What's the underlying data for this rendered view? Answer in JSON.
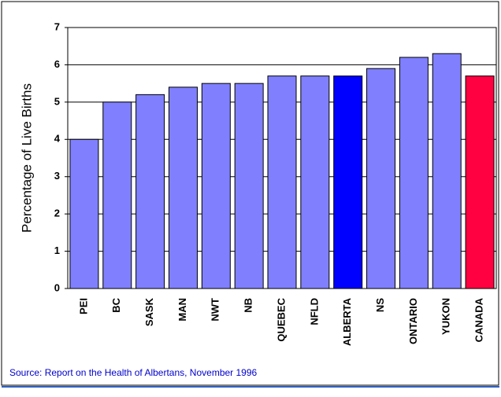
{
  "chart_data": {
    "type": "bar",
    "ylabel": "Percentage of Live Births",
    "categories": [
      "PEI",
      "BC",
      "SASK",
      "MAN",
      "NWT",
      "NB",
      "QUEBEC",
      "NFLD",
      "ALBERTA",
      "NS",
      "ONTARIO",
      "YUKON",
      "CANADA"
    ],
    "values": [
      4.0,
      5.0,
      5.2,
      5.4,
      5.5,
      5.5,
      5.7,
      5.7,
      5.7,
      5.9,
      6.2,
      6.3,
      5.7
    ],
    "colors": [
      "#8080ff",
      "#8080ff",
      "#8080ff",
      "#8080ff",
      "#8080ff",
      "#8080ff",
      "#8080ff",
      "#8080ff",
      "#0000ff",
      "#8080ff",
      "#8080ff",
      "#8080ff",
      "#ff0040"
    ],
    "ylim": [
      0,
      7
    ],
    "yticks": [
      0,
      1,
      2,
      3,
      4,
      5,
      6,
      7
    ],
    "grid": true,
    "source": "Source: Report on the Health of Albertans, November 1996"
  }
}
